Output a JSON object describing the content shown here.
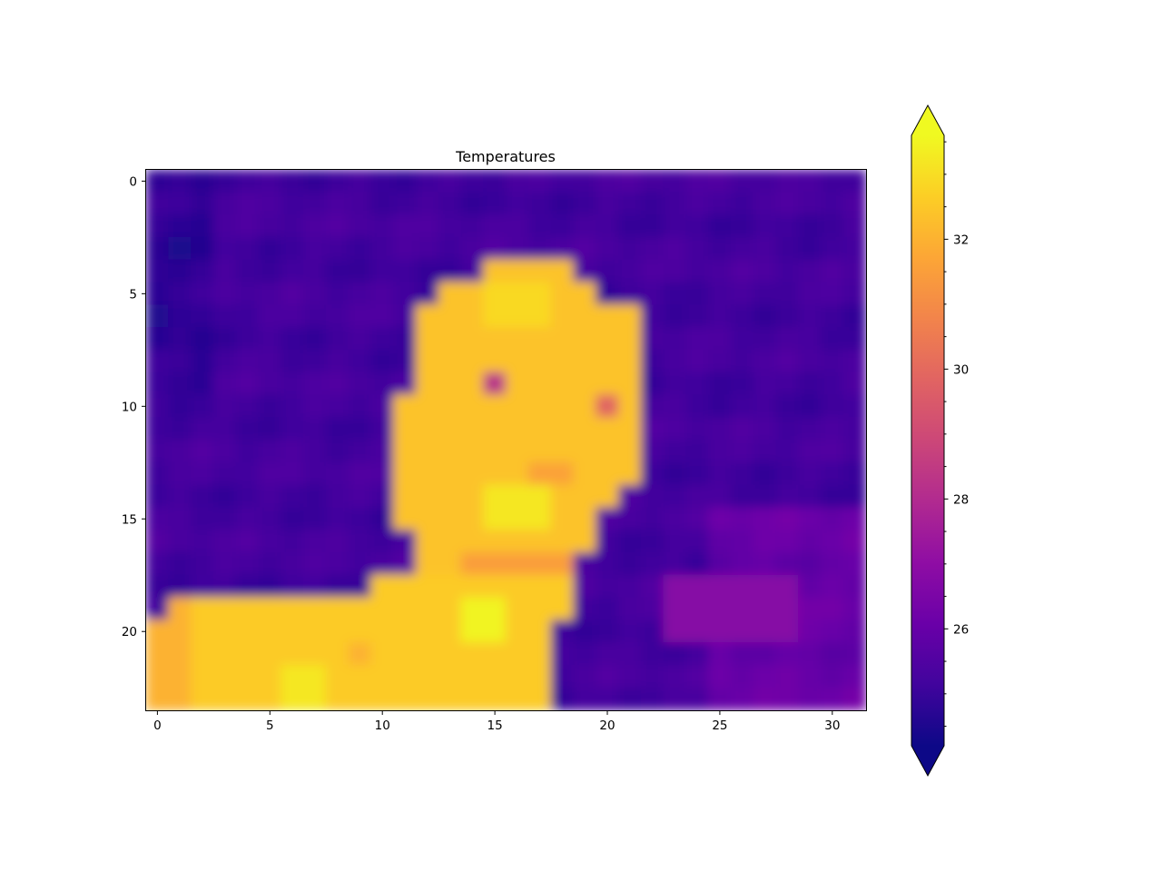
{
  "chart_data": {
    "type": "heatmap",
    "title": "Temperatures",
    "xlabel": "",
    "ylabel": "",
    "colormap": "plasma",
    "interpolation": "smooth",
    "grid_shape": [
      24,
      32
    ],
    "xlim": [
      -0.5,
      31.5
    ],
    "ylim": [
      23.5,
      -0.5
    ],
    "x_ticks": [
      0,
      5,
      10,
      15,
      20,
      25,
      30
    ],
    "y_ticks": [
      0,
      5,
      10,
      15,
      20
    ],
    "colorbar": {
      "vmin": 24.2,
      "vmax": 33.6,
      "extend": "both",
      "ticks": [
        26,
        28,
        30,
        32
      ],
      "minor_tick_step": 0.5
    },
    "background_temp": 25.2,
    "regions": [
      {
        "label": "head",
        "temp": 32.4
      },
      {
        "label": "eye",
        "temp": 28.2
      },
      {
        "label": "shoulders",
        "temp": 32.6
      },
      {
        "label": "warm background patch",
        "temp": 26.8
      }
    ]
  }
}
